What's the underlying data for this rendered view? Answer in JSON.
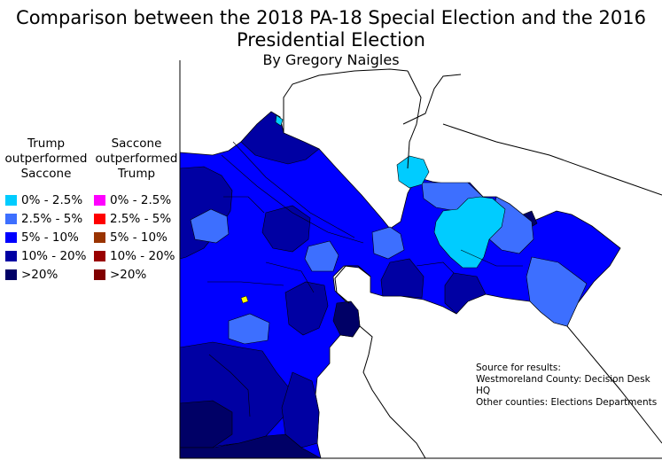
{
  "title": {
    "line1": "Comparison between the 2018 PA-18 Special Election and the 2016",
    "line2": "Presidential Election",
    "byline": "By Gregory Naigles"
  },
  "legend": {
    "left": {
      "heading": [
        "Trump",
        "outperformed",
        "Saccone"
      ],
      "items": [
        {
          "label": "0% - 2.5%",
          "color": "#00ccff"
        },
        {
          "label": "2.5% - 5%",
          "color": "#3d6fff"
        },
        {
          "label": "5% - 10%",
          "color": "#0000ff"
        },
        {
          "label": "10% - 20%",
          "color": "#0000a3"
        },
        {
          "label": ">20%",
          "color": "#000066"
        }
      ]
    },
    "right": {
      "heading": [
        "Saccone",
        "outperformed",
        "Trump"
      ],
      "items": [
        {
          "label": "0% - 2.5%",
          "color": "#ff00ff"
        },
        {
          "label": "2.5% - 5%",
          "color": "#ff0000"
        },
        {
          "label": "5% - 10%",
          "color": "#993300"
        },
        {
          "label": "10% - 20%",
          "color": "#990000"
        },
        {
          "label": ">20%",
          "color": "#800000"
        }
      ]
    }
  },
  "source": {
    "line1": "Source for results:",
    "line2": "Westmoreland County: Decision Desk HQ",
    "line3": "Other counties: Elections Departments"
  },
  "map_colors": {
    "outline": "#000000",
    "outside_district": "#ffffff",
    "highlight": "#ffff00"
  }
}
